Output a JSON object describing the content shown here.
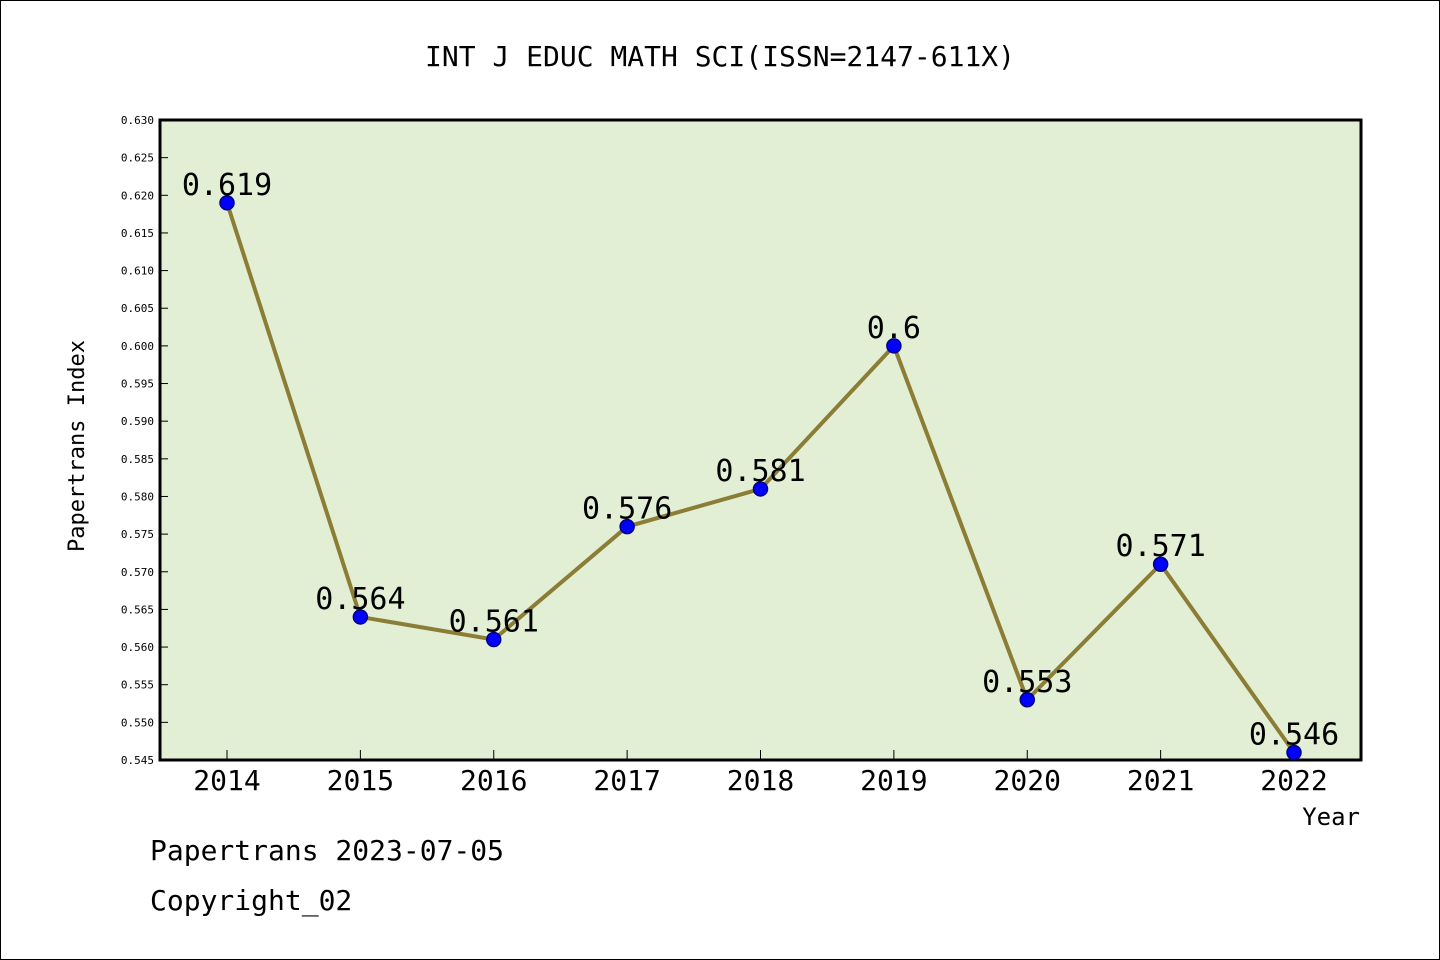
{
  "chart_data": {
    "type": "line",
    "title": "INT J EDUC MATH SCI(ISSN=2147-611X)",
    "xlabel": "Year",
    "ylabel": "Papertrans Index",
    "categories": [
      "2014",
      "2015",
      "2016",
      "2017",
      "2018",
      "2019",
      "2020",
      "2021",
      "2022"
    ],
    "series": [
      {
        "values": [
          0.619,
          0.564,
          0.561,
          0.576,
          0.581,
          0.6,
          0.553,
          0.571,
          0.546
        ]
      }
    ],
    "data_labels": [
      "0.619",
      "0.564",
      "0.561",
      "0.576",
      "0.581",
      "0.6",
      "0.553",
      "0.571",
      "0.546"
    ],
    "ylim": [
      0.545,
      0.63
    ],
    "yticks": [
      "0.545",
      "0.550",
      "0.555",
      "0.560",
      "0.565",
      "0.570",
      "0.575",
      "0.580",
      "0.585",
      "0.590",
      "0.595",
      "0.600",
      "0.605",
      "0.610",
      "0.615",
      "0.620",
      "0.625",
      "0.630"
    ],
    "grid": false,
    "colors": {
      "plot_background": "#e2efd4",
      "line": "#8b7d35",
      "marker": "#0000ff",
      "marker_edge": "#000080"
    }
  },
  "footer": {
    "line1": "Papertrans 2023-07-05",
    "line2": "Copyright_02"
  }
}
